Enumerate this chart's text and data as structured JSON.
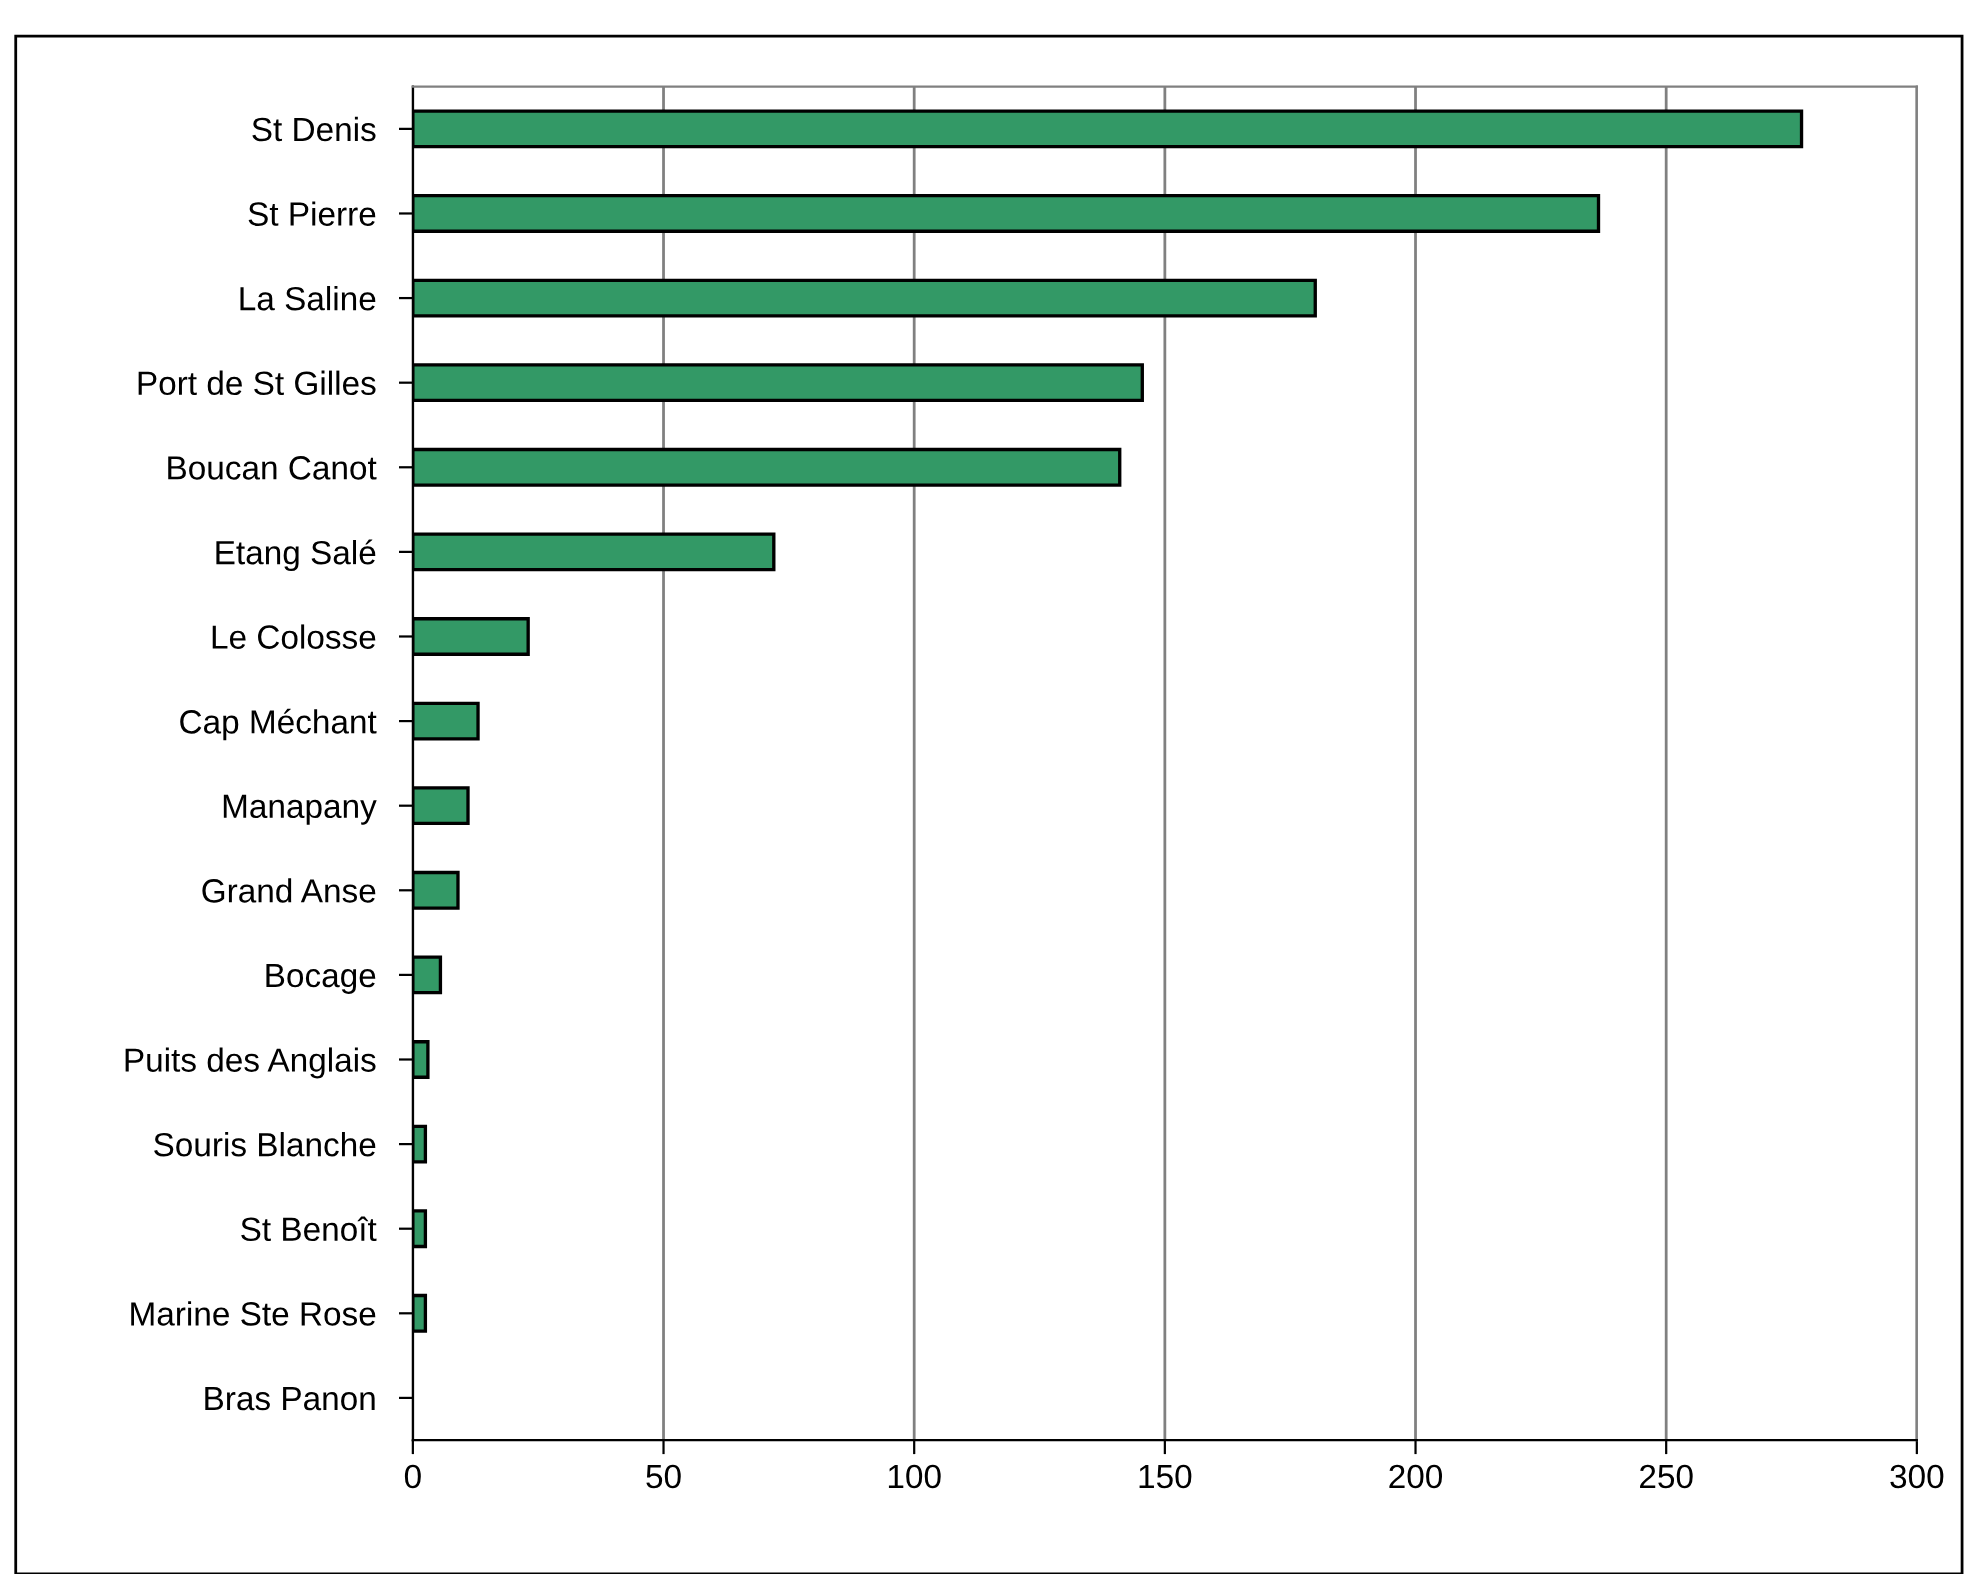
{
  "chart_data": {
    "type": "bar",
    "orientation": "horizontal",
    "categories": [
      "St Denis",
      "St Pierre",
      "La Saline",
      "Port de St Gilles",
      "Boucan Canot",
      "Etang Salé",
      "Le Colosse",
      "Cap Méchant",
      "Manapany",
      "Grand Anse",
      "Bocage",
      "Puits des Anglais",
      "Souris Blanche",
      "St Benoît",
      "Marine Ste Rose",
      "Bras Panon"
    ],
    "values": [
      277,
      236.5,
      180,
      145.5,
      141,
      72,
      23,
      13,
      11,
      9,
      5.5,
      3,
      2.5,
      2.5,
      2.5,
      0
    ],
    "color": "#339966",
    "xlim": [
      0,
      300
    ],
    "xticks": [
      0,
      50,
      100,
      150,
      200,
      250,
      300
    ],
    "grid": "x"
  }
}
